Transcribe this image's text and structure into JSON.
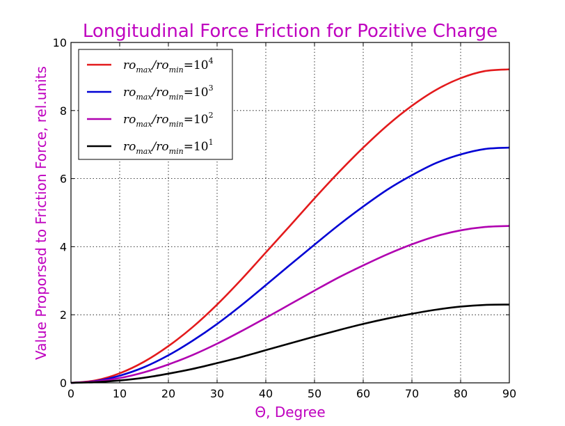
{
  "chart_data": {
    "type": "line",
    "title": "Longitudinal Force Friction for Pozitive Charge",
    "xlabel": "Θ, Degree",
    "ylabel": "Value Proporsed to Friction Force, rel.units",
    "xlim": [
      0,
      90
    ],
    "ylim": [
      0,
      10
    ],
    "x_ticks": [
      0,
      10,
      20,
      30,
      40,
      50,
      60,
      70,
      80,
      90
    ],
    "y_ticks": [
      0,
      2,
      4,
      6,
      8,
      10
    ],
    "grid": true,
    "legend_position": "top-left",
    "x": [
      0,
      5,
      10,
      15,
      20,
      25,
      30,
      35,
      40,
      45,
      50,
      55,
      60,
      65,
      70,
      75,
      80,
      85,
      90
    ],
    "series": [
      {
        "name_base": "ro",
        "name_sub1": "max",
        "name_div": "/ro",
        "name_sub2": "min",
        "name_eq": "=10",
        "name_exp": "4",
        "color": "#e31a1c",
        "values": [
          0,
          0.07,
          0.28,
          0.62,
          1.08,
          1.64,
          2.3,
          3.04,
          3.83,
          4.62,
          5.42,
          6.19,
          6.91,
          7.57,
          8.14,
          8.61,
          8.95,
          9.16,
          9.21
        ]
      },
      {
        "name_base": "ro",
        "name_sub1": "max",
        "name_div": "/ro",
        "name_sub2": "min",
        "name_eq": "=10",
        "name_exp": "3",
        "color": "#0000d4",
        "values": [
          0,
          0.05,
          0.21,
          0.46,
          0.81,
          1.24,
          1.73,
          2.28,
          2.87,
          3.47,
          4.06,
          4.64,
          5.18,
          5.68,
          6.1,
          6.46,
          6.71,
          6.87,
          6.91
        ]
      },
      {
        "name_base": "ro",
        "name_sub1": "max",
        "name_div": "/ro",
        "name_sub2": "min",
        "name_eq": "=10",
        "name_exp": "2",
        "color": "#b000b0",
        "values": [
          0,
          0.04,
          0.14,
          0.31,
          0.54,
          0.82,
          1.15,
          1.52,
          1.91,
          2.31,
          2.71,
          3.1,
          3.45,
          3.78,
          4.07,
          4.31,
          4.48,
          4.58,
          4.61
        ]
      },
      {
        "name_base": "ro",
        "name_sub1": "max",
        "name_div": "/ro",
        "name_sub2": "min",
        "name_eq": "=10",
        "name_exp": "1",
        "color": "#000000",
        "values": [
          0,
          0.02,
          0.07,
          0.15,
          0.27,
          0.41,
          0.58,
          0.76,
          0.96,
          1.16,
          1.36,
          1.55,
          1.73,
          1.89,
          2.03,
          2.15,
          2.24,
          2.29,
          2.3
        ]
      }
    ]
  }
}
